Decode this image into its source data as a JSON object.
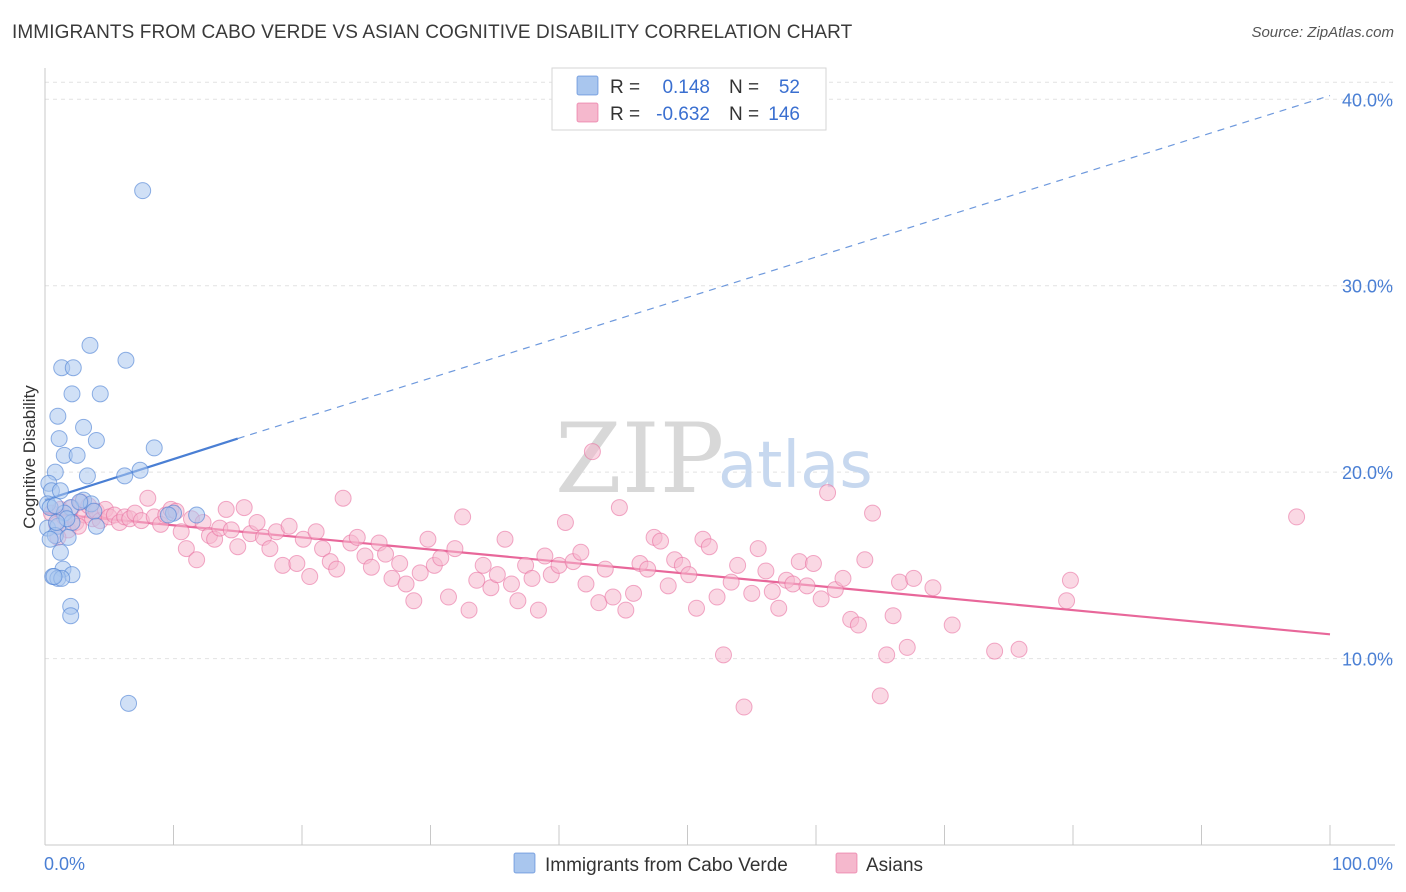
{
  "title": "IMMIGRANTS FROM CABO VERDE VS ASIAN COGNITIVE DISABILITY CORRELATION CHART",
  "source": "Source: ZipAtlas.com",
  "watermark": {
    "part1": "ZIP",
    "part2": "atlas"
  },
  "colors": {
    "blue": "#4a7fd4",
    "blue_fill": "#a9c6ee",
    "pink": "#e8679a",
    "pink_fill": "#f5b8cd"
  },
  "legend": {
    "rows": [
      {
        "r_label": "R =",
        "r_value": "0.148",
        "n_label": "N =",
        "n_value": "52"
      },
      {
        "r_label": "R =",
        "r_value": "-0.632",
        "n_label": "N =",
        "n_value": "146"
      }
    ]
  },
  "bottom_legend": {
    "series1": "Immigrants from Cabo Verde",
    "series2": "Asians"
  },
  "chart_data": {
    "type": "scatter",
    "title": "IMMIGRANTS FROM CABO VERDE VS ASIAN COGNITIVE DISABILITY CORRELATION CHART",
    "xlabel": "",
    "ylabel": "Cognitive Disability",
    "xlim": [
      0,
      100
    ],
    "ylim": [
      0,
      42
    ],
    "x_tick_labels": [
      "0.0%",
      "100.0%"
    ],
    "y_ticks": [
      10,
      20,
      30,
      40
    ],
    "y_tick_labels": [
      "10.0%",
      "20.0%",
      "30.0%",
      "40.0%"
    ],
    "grid": true,
    "series": [
      {
        "name": "Immigrants from Cabo Verde",
        "r": 0.148,
        "n": 52,
        "trend": {
          "x0": 0,
          "y0": 18.5,
          "x1": 15,
          "y1": 21.8,
          "extend_to_x": 100,
          "extend_to_y": 40.2
        },
        "points": [
          [
            7.6,
            35.1
          ],
          [
            3.5,
            26.8
          ],
          [
            6.3,
            26.0
          ],
          [
            1.3,
            25.6
          ],
          [
            2.2,
            25.6
          ],
          [
            2.1,
            24.2
          ],
          [
            4.3,
            24.2
          ],
          [
            1.0,
            23.0
          ],
          [
            3.0,
            22.4
          ],
          [
            4.0,
            21.7
          ],
          [
            8.5,
            21.3
          ],
          [
            1.1,
            21.8
          ],
          [
            1.5,
            20.9
          ],
          [
            2.5,
            20.9
          ],
          [
            0.8,
            20.0
          ],
          [
            3.3,
            19.8
          ],
          [
            6.2,
            19.8
          ],
          [
            7.4,
            20.1
          ],
          [
            0.3,
            19.4
          ],
          [
            0.5,
            19.0
          ],
          [
            1.2,
            19.0
          ],
          [
            3.0,
            18.5
          ],
          [
            0.2,
            18.3
          ],
          [
            0.4,
            18.1
          ],
          [
            2.0,
            18.1
          ],
          [
            3.6,
            18.3
          ],
          [
            1.5,
            17.8
          ],
          [
            3.8,
            17.9
          ],
          [
            10.0,
            17.8
          ],
          [
            11.8,
            17.7
          ],
          [
            0.2,
            17.0
          ],
          [
            1.0,
            17.1
          ],
          [
            2.1,
            17.3
          ],
          [
            4.0,
            17.1
          ],
          [
            0.8,
            16.6
          ],
          [
            1.8,
            16.5
          ],
          [
            0.4,
            16.4
          ],
          [
            1.2,
            15.7
          ],
          [
            1.4,
            14.8
          ],
          [
            2.1,
            14.5
          ],
          [
            0.6,
            14.4
          ],
          [
            1.0,
            14.3
          ],
          [
            1.3,
            14.3
          ],
          [
            0.7,
            14.4
          ],
          [
            2.0,
            12.8
          ],
          [
            2.0,
            12.3
          ],
          [
            6.5,
            7.6
          ],
          [
            0.8,
            18.2
          ],
          [
            2.7,
            18.4
          ],
          [
            1.7,
            17.5
          ],
          [
            0.9,
            17.3
          ],
          [
            9.6,
            17.7
          ]
        ]
      },
      {
        "name": "Asians",
        "r": -0.632,
        "n": 146,
        "trend": {
          "x0": 0,
          "y0": 17.8,
          "x1": 100,
          "y1": 11.3
        },
        "points": [
          [
            0.5,
            17.8
          ],
          [
            0.9,
            17.2
          ],
          [
            1.2,
            18.0
          ],
          [
            1.5,
            17.6
          ],
          [
            1.8,
            16.9
          ],
          [
            2.1,
            18.1
          ],
          [
            2.4,
            17.3
          ],
          [
            2.8,
            18.4
          ],
          [
            3.1,
            17.7
          ],
          [
            3.4,
            18.2
          ],
          [
            3.7,
            17.5
          ],
          [
            4.0,
            17.9
          ],
          [
            4.3,
            17.4
          ],
          [
            4.7,
            18.0
          ],
          [
            5.0,
            17.6
          ],
          [
            5.4,
            17.7
          ],
          [
            5.8,
            17.3
          ],
          [
            6.2,
            17.6
          ],
          [
            6.6,
            17.5
          ],
          [
            7.0,
            17.8
          ],
          [
            7.5,
            17.4
          ],
          [
            8.0,
            18.6
          ],
          [
            8.5,
            17.6
          ],
          [
            9.0,
            17.2
          ],
          [
            9.4,
            17.7
          ],
          [
            9.8,
            18.0
          ],
          [
            10.2,
            17.9
          ],
          [
            10.6,
            16.8
          ],
          [
            11.0,
            15.9
          ],
          [
            11.4,
            17.5
          ],
          [
            11.8,
            15.3
          ],
          [
            12.3,
            17.3
          ],
          [
            12.8,
            16.6
          ],
          [
            13.2,
            16.4
          ],
          [
            13.6,
            17.0
          ],
          [
            14.1,
            18.0
          ],
          [
            14.5,
            16.9
          ],
          [
            15.0,
            16.0
          ],
          [
            15.5,
            18.1
          ],
          [
            16.0,
            16.7
          ],
          [
            16.5,
            17.3
          ],
          [
            17.0,
            16.5
          ],
          [
            17.5,
            15.9
          ],
          [
            18.0,
            16.8
          ],
          [
            18.5,
            15.0
          ],
          [
            19.0,
            17.1
          ],
          [
            19.6,
            15.1
          ],
          [
            20.1,
            16.4
          ],
          [
            20.6,
            14.4
          ],
          [
            21.1,
            16.8
          ],
          [
            21.6,
            15.9
          ],
          [
            22.2,
            15.2
          ],
          [
            22.7,
            14.8
          ],
          [
            23.2,
            18.6
          ],
          [
            23.8,
            16.2
          ],
          [
            24.3,
            16.5
          ],
          [
            24.9,
            15.5
          ],
          [
            25.4,
            14.9
          ],
          [
            26.0,
            16.2
          ],
          [
            26.5,
            15.6
          ],
          [
            27.0,
            14.3
          ],
          [
            27.6,
            15.1
          ],
          [
            28.1,
            14.0
          ],
          [
            28.7,
            13.1
          ],
          [
            29.2,
            14.6
          ],
          [
            29.8,
            16.4
          ],
          [
            30.3,
            15.0
          ],
          [
            30.8,
            15.4
          ],
          [
            31.4,
            13.3
          ],
          [
            31.9,
            15.9
          ],
          [
            32.5,
            17.6
          ],
          [
            33.0,
            12.6
          ],
          [
            33.6,
            14.2
          ],
          [
            34.1,
            15.0
          ],
          [
            34.7,
            13.8
          ],
          [
            35.2,
            14.5
          ],
          [
            35.8,
            16.4
          ],
          [
            36.3,
            14.0
          ],
          [
            36.8,
            13.1
          ],
          [
            37.4,
            15.0
          ],
          [
            37.9,
            14.3
          ],
          [
            38.4,
            12.6
          ],
          [
            38.9,
            15.5
          ],
          [
            39.4,
            14.5
          ],
          [
            40.0,
            15.0
          ],
          [
            40.5,
            17.3
          ],
          [
            41.1,
            15.2
          ],
          [
            41.7,
            15.7
          ],
          [
            42.1,
            14.0
          ],
          [
            42.6,
            21.1
          ],
          [
            43.1,
            13.0
          ],
          [
            43.6,
            14.8
          ],
          [
            44.2,
            13.3
          ],
          [
            44.7,
            18.1
          ],
          [
            45.2,
            12.6
          ],
          [
            45.8,
            13.5
          ],
          [
            46.3,
            15.1
          ],
          [
            46.9,
            14.8
          ],
          [
            47.4,
            16.5
          ],
          [
            47.9,
            16.3
          ],
          [
            48.5,
            13.9
          ],
          [
            49.0,
            15.3
          ],
          [
            49.6,
            15.0
          ],
          [
            50.1,
            14.5
          ],
          [
            50.7,
            12.7
          ],
          [
            51.2,
            16.4
          ],
          [
            51.7,
            16.0
          ],
          [
            52.3,
            13.3
          ],
          [
            52.8,
            10.2
          ],
          [
            53.4,
            14.1
          ],
          [
            53.9,
            15.0
          ],
          [
            54.4,
            7.4
          ],
          [
            55.0,
            13.5
          ],
          [
            55.5,
            15.9
          ],
          [
            56.1,
            14.7
          ],
          [
            56.6,
            13.6
          ],
          [
            57.1,
            12.7
          ],
          [
            57.7,
            14.2
          ],
          [
            58.2,
            14.0
          ],
          [
            58.7,
            15.2
          ],
          [
            59.3,
            13.9
          ],
          [
            59.8,
            15.1
          ],
          [
            60.4,
            13.2
          ],
          [
            60.9,
            18.9
          ],
          [
            61.5,
            13.7
          ],
          [
            62.1,
            14.3
          ],
          [
            62.7,
            12.1
          ],
          [
            63.3,
            11.8
          ],
          [
            63.8,
            15.3
          ],
          [
            64.4,
            17.8
          ],
          [
            65.0,
            8.0
          ],
          [
            65.5,
            10.2
          ],
          [
            66.0,
            12.3
          ],
          [
            66.5,
            14.1
          ],
          [
            67.1,
            10.6
          ],
          [
            67.6,
            14.3
          ],
          [
            69.1,
            13.8
          ],
          [
            70.6,
            11.8
          ],
          [
            73.9,
            10.4
          ],
          [
            75.8,
            10.5
          ],
          [
            79.5,
            13.1
          ],
          [
            79.8,
            14.2
          ],
          [
            97.4,
            17.6
          ],
          [
            1.0,
            16.5
          ],
          [
            2.6,
            17.1
          ]
        ]
      }
    ]
  }
}
